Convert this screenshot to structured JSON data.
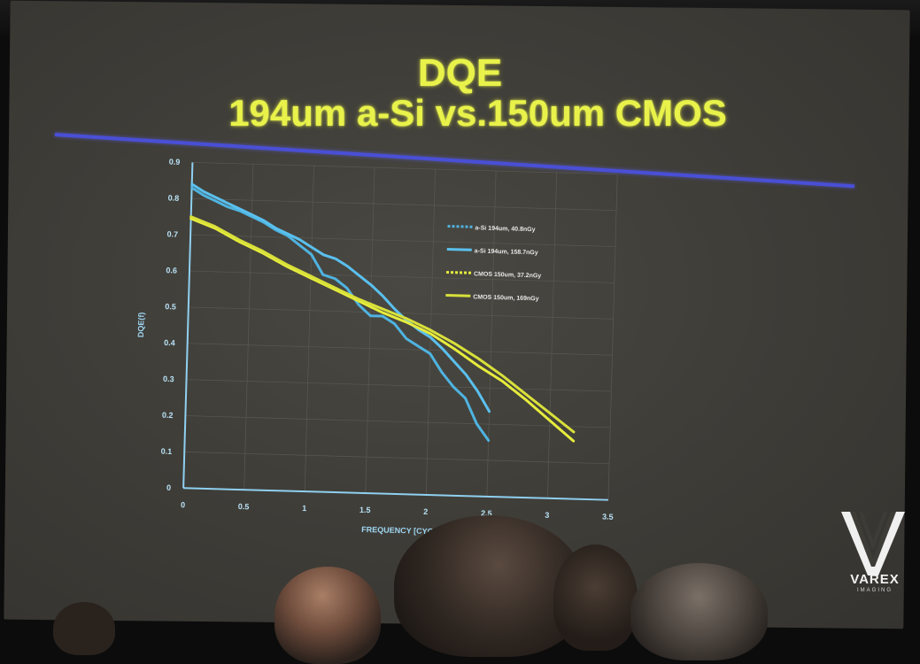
{
  "slide": {
    "title_line1": "DQE",
    "title_line2": "194um a-Si vs.150um CMOS",
    "title_color": "#e8f24a",
    "rule_color": "#4a4fd6"
  },
  "logo": {
    "name": "VAREX",
    "sub": "IMAGING"
  },
  "chart_data": {
    "type": "line",
    "title": "",
    "xlabel": "FREQUENCY [CYCLES/...]",
    "ylabel": "DQE(f)",
    "xlim": [
      0,
      3.5
    ],
    "ylim": [
      0,
      0.9
    ],
    "xticks": [
      "0",
      "0.5",
      "1",
      "1.5",
      "2",
      "2.5",
      "3",
      "3.5"
    ],
    "yticks": [
      "0",
      "0.1",
      "0.2",
      "0.3",
      "0.4",
      "0.5",
      "0.6",
      "0.7",
      "0.8",
      "0.9"
    ],
    "grid": true,
    "legend_position": "top-right",
    "series": [
      {
        "name": "a-Si 194um, 40.8nGy",
        "color": "#4fb3e0",
        "dash": "dashed",
        "points": [
          [
            0,
            0.83
          ],
          [
            0.1,
            0.81
          ],
          [
            0.2,
            0.795
          ],
          [
            0.3,
            0.78
          ],
          [
            0.4,
            0.77
          ],
          [
            0.5,
            0.755
          ],
          [
            0.6,
            0.74
          ],
          [
            0.7,
            0.72
          ],
          [
            0.8,
            0.705
          ],
          [
            0.9,
            0.68
          ],
          [
            1.0,
            0.655
          ],
          [
            1.1,
            0.6
          ],
          [
            1.2,
            0.59
          ],
          [
            1.3,
            0.565
          ],
          [
            1.4,
            0.52
          ],
          [
            1.5,
            0.49
          ],
          [
            1.6,
            0.49
          ],
          [
            1.7,
            0.47
          ],
          [
            1.8,
            0.43
          ],
          [
            1.9,
            0.41
          ],
          [
            2.0,
            0.39
          ],
          [
            2.1,
            0.34
          ],
          [
            2.2,
            0.3
          ],
          [
            2.3,
            0.27
          ],
          [
            2.4,
            0.2
          ],
          [
            2.5,
            0.155
          ]
        ]
      },
      {
        "name": "a-Si 194um, 158.7nGy",
        "color": "#5ac0ee",
        "dash": "solid",
        "points": [
          [
            0,
            0.84
          ],
          [
            0.1,
            0.82
          ],
          [
            0.2,
            0.805
          ],
          [
            0.3,
            0.79
          ],
          [
            0.4,
            0.775
          ],
          [
            0.5,
            0.76
          ],
          [
            0.6,
            0.745
          ],
          [
            0.7,
            0.725
          ],
          [
            0.8,
            0.71
          ],
          [
            0.9,
            0.695
          ],
          [
            1.0,
            0.675
          ],
          [
            1.1,
            0.655
          ],
          [
            1.2,
            0.645
          ],
          [
            1.3,
            0.625
          ],
          [
            1.4,
            0.6
          ],
          [
            1.5,
            0.575
          ],
          [
            1.6,
            0.545
          ],
          [
            1.7,
            0.51
          ],
          [
            1.8,
            0.48
          ],
          [
            1.9,
            0.455
          ],
          [
            2.0,
            0.435
          ],
          [
            2.1,
            0.405
          ],
          [
            2.2,
            0.37
          ],
          [
            2.3,
            0.335
          ],
          [
            2.4,
            0.29
          ],
          [
            2.5,
            0.235
          ]
        ]
      },
      {
        "name": "CMOS 150um, 37.2nGy",
        "color": "#e6ec3c",
        "dash": "dashed",
        "points": [
          [
            0,
            0.745
          ],
          [
            0.2,
            0.72
          ],
          [
            0.4,
            0.685
          ],
          [
            0.6,
            0.655
          ],
          [
            0.8,
            0.62
          ],
          [
            1.0,
            0.59
          ],
          [
            1.2,
            0.56
          ],
          [
            1.4,
            0.53
          ],
          [
            1.6,
            0.5
          ],
          [
            1.8,
            0.475
          ],
          [
            2.0,
            0.445
          ],
          [
            2.2,
            0.405
          ],
          [
            2.4,
            0.36
          ],
          [
            2.6,
            0.32
          ],
          [
            2.8,
            0.27
          ],
          [
            3.0,
            0.215
          ],
          [
            3.2,
            0.16
          ]
        ]
      },
      {
        "name": "CMOS 150um, 169nGy",
        "color": "#d8e03a",
        "dash": "solid",
        "points": [
          [
            0,
            0.75
          ],
          [
            0.2,
            0.725
          ],
          [
            0.4,
            0.69
          ],
          [
            0.6,
            0.66
          ],
          [
            0.8,
            0.625
          ],
          [
            1.0,
            0.595
          ],
          [
            1.2,
            0.565
          ],
          [
            1.4,
            0.535
          ],
          [
            1.6,
            0.51
          ],
          [
            1.8,
            0.485
          ],
          [
            2.0,
            0.455
          ],
          [
            2.2,
            0.42
          ],
          [
            2.4,
            0.38
          ],
          [
            2.6,
            0.335
          ],
          [
            2.8,
            0.285
          ],
          [
            3.0,
            0.235
          ],
          [
            3.2,
            0.185
          ]
        ]
      }
    ]
  }
}
